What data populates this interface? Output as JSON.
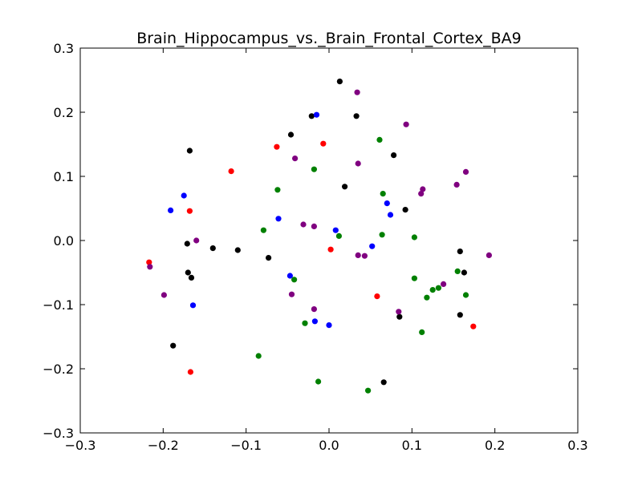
{
  "chart_data": {
    "type": "scatter",
    "title": "Brain_Hippocampus_vs._Brain_Frontal_Cortex_BA9",
    "xlabel": "",
    "ylabel": "",
    "xlim": [
      -0.3,
      0.3
    ],
    "ylim": [
      -0.3,
      0.3
    ],
    "xticks": [
      "−0.3",
      "−0.2",
      "−0.1",
      "0.0",
      "0.1",
      "0.2",
      "0.3"
    ],
    "yticks": [
      "−0.3",
      "−0.2",
      "−0.1",
      "0.0",
      "0.1",
      "0.2",
      "0.3"
    ],
    "grid": false,
    "legend": "none",
    "series": [
      {
        "color": "#000000",
        "points": [
          [
            0.013,
            0.248
          ],
          [
            0.033,
            0.194
          ],
          [
            -0.021,
            0.194
          ],
          [
            -0.046,
            0.165
          ],
          [
            -0.168,
            0.14
          ],
          [
            0.078,
            0.133
          ],
          [
            0.019,
            0.084
          ],
          [
            0.092,
            0.048
          ],
          [
            -0.171,
            -0.005
          ],
          [
            -0.14,
            -0.012
          ],
          [
            -0.11,
            -0.015
          ],
          [
            -0.073,
            -0.027
          ],
          [
            0.158,
            -0.017
          ],
          [
            -0.17,
            -0.05
          ],
          [
            -0.166,
            -0.058
          ],
          [
            0.163,
            -0.05
          ],
          [
            0.085,
            -0.119
          ],
          [
            0.158,
            -0.116
          ],
          [
            -0.188,
            -0.164
          ],
          [
            0.066,
            -0.221
          ]
        ]
      },
      {
        "color": "#0000ff",
        "points": [
          [
            -0.015,
            0.196
          ],
          [
            -0.175,
            0.07
          ],
          [
            -0.191,
            0.047
          ],
          [
            -0.061,
            0.034
          ],
          [
            0.074,
            0.04
          ],
          [
            0.07,
            0.058
          ],
          [
            0.008,
            0.016
          ],
          [
            0.052,
            -0.009
          ],
          [
            -0.047,
            -0.055
          ],
          [
            -0.164,
            -0.101
          ],
          [
            -0.017,
            -0.126
          ],
          [
            0.0,
            -0.132
          ]
        ]
      },
      {
        "color": "#ff0000",
        "points": [
          [
            -0.007,
            0.151
          ],
          [
            -0.063,
            0.146
          ],
          [
            -0.118,
            0.108
          ],
          [
            -0.168,
            0.046
          ],
          [
            0.002,
            -0.014
          ],
          [
            -0.217,
            -0.034
          ],
          [
            0.058,
            -0.087
          ],
          [
            0.174,
            -0.134
          ],
          [
            -0.167,
            -0.205
          ]
        ]
      },
      {
        "color": "#008000",
        "points": [
          [
            0.061,
            0.157
          ],
          [
            -0.018,
            0.111
          ],
          [
            -0.062,
            0.079
          ],
          [
            0.065,
            0.073
          ],
          [
            -0.079,
            0.016
          ],
          [
            0.012,
            0.007
          ],
          [
            0.064,
            0.009
          ],
          [
            0.103,
            0.005
          ],
          [
            -0.042,
            -0.061
          ],
          [
            0.103,
            -0.059
          ],
          [
            0.155,
            -0.048
          ],
          [
            0.125,
            -0.077
          ],
          [
            0.132,
            -0.074
          ],
          [
            0.118,
            -0.089
          ],
          [
            0.165,
            -0.085
          ],
          [
            -0.029,
            -0.129
          ],
          [
            0.112,
            -0.143
          ],
          [
            -0.085,
            -0.18
          ],
          [
            -0.013,
            -0.22
          ],
          [
            0.047,
            -0.234
          ]
        ]
      },
      {
        "color": "#800080",
        "points": [
          [
            0.034,
            0.231
          ],
          [
            0.093,
            0.181
          ],
          [
            0.035,
            0.12
          ],
          [
            -0.041,
            0.128
          ],
          [
            0.165,
            0.107
          ],
          [
            0.154,
            0.087
          ],
          [
            0.113,
            0.08
          ],
          [
            0.111,
            0.073
          ],
          [
            -0.031,
            0.025
          ],
          [
            -0.018,
            0.022
          ],
          [
            -0.16,
            0.0
          ],
          [
            0.035,
            -0.023
          ],
          [
            0.043,
            -0.024
          ],
          [
            0.193,
            -0.023
          ],
          [
            -0.216,
            -0.041
          ],
          [
            0.138,
            -0.068
          ],
          [
            -0.045,
            -0.084
          ],
          [
            -0.199,
            -0.085
          ],
          [
            -0.018,
            -0.107
          ],
          [
            0.084,
            -0.111
          ]
        ]
      }
    ]
  }
}
